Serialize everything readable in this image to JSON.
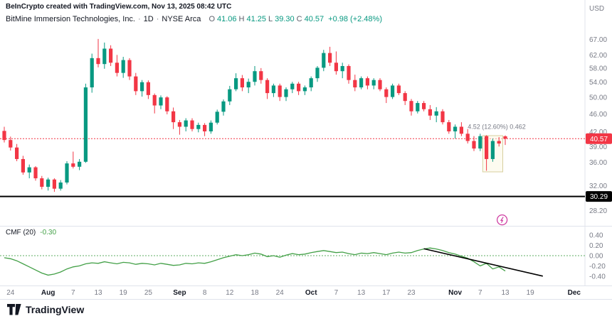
{
  "header": {
    "attribution": "BeInCrypto created with TradingView.com, Nov 13, 2025 08:42 UTC",
    "symbol": {
      "name": "BitMine Immersion Technologies, Inc.",
      "dot": "·",
      "interval": "1D",
      "exchange": "NYSE Arca",
      "ohlc": {
        "o_label": "O",
        "o": "41.06",
        "h_label": "H",
        "h": "41.25",
        "l_label": "L",
        "l": "39.30",
        "c_label": "C",
        "c": "40.57",
        "change": "+0.98 (+2.48%)"
      }
    }
  },
  "indicator": {
    "label": "CMF (20)",
    "value": "-0.30"
  },
  "axes": {
    "currency_label": "USD",
    "price_ticks": [
      "67.00",
      "62.00",
      "58.00",
      "54.00",
      "50.00",
      "46.00",
      "42.00",
      "39.00",
      "36.00",
      "32.00",
      "28.20"
    ],
    "cmf_ticks": [
      "0.40",
      "0.20",
      "0.00",
      "-0.20",
      "-0.40"
    ],
    "time_ticks": [
      {
        "label": "24",
        "index": 1,
        "month": false
      },
      {
        "label": "Aug",
        "index": 7,
        "month": true
      },
      {
        "label": "7",
        "index": 11,
        "month": false
      },
      {
        "label": "13",
        "index": 15,
        "month": false
      },
      {
        "label": "19",
        "index": 19,
        "month": false
      },
      {
        "label": "25",
        "index": 23,
        "month": false
      },
      {
        "label": "Sep",
        "index": 28,
        "month": true
      },
      {
        "label": "8",
        "index": 32,
        "month": false
      },
      {
        "label": "12",
        "index": 36,
        "month": false
      },
      {
        "label": "18",
        "index": 40,
        "month": false
      },
      {
        "label": "24",
        "index": 44,
        "month": false
      },
      {
        "label": "Oct",
        "index": 49,
        "month": true
      },
      {
        "label": "7",
        "index": 53,
        "month": false
      },
      {
        "label": "13",
        "index": 57,
        "month": false
      },
      {
        "label": "17",
        "index": 61,
        "month": false
      },
      {
        "label": "23",
        "index": 65,
        "month": false
      },
      {
        "label": "Nov",
        "index": 72,
        "month": true
      },
      {
        "label": "7",
        "index": 76,
        "month": false
      },
      {
        "label": "13",
        "index": 80,
        "month": false
      },
      {
        "label": "19",
        "index": 84,
        "month": false
      },
      {
        "label": "Dec",
        "index": 91,
        "month": true
      }
    ]
  },
  "annotations": {
    "support_line": {
      "price": 30.29,
      "label": "30.29"
    },
    "last_price_line": {
      "price": 40.57,
      "label": "40.57",
      "style": "dashed"
    },
    "measure_label": {
      "text": "4.52 (12.60%) 0.462",
      "index": 74,
      "price": 42.6
    },
    "highlight_box": {
      "from_index": 76.4,
      "to_index": 79.6,
      "top_price": 41.2,
      "bottom_price": 34.3
    },
    "event_marker": {
      "index": 79.5,
      "price": 26.9,
      "icon": "lightning"
    },
    "cmf_trendline": {
      "from_index": 67,
      "from_value": 0.135,
      "to_index": 86,
      "to_value": -0.4
    },
    "cmf_zero_line": {
      "value": 0
    }
  },
  "colors": {
    "up": "#089981",
    "down": "#f23645",
    "cmf_line": "#43a047",
    "cmf_zero": "#5fae63",
    "trend": "#000000",
    "support": "#000000",
    "axis_text": "#787b86",
    "dark_text": "#131722",
    "separator": "#e0e3eb",
    "event": "#cf3ea2",
    "measure_text": "#787b86",
    "highlight_fill": "#fbf7e3",
    "highlight_stroke": "#d8cf9e",
    "badge_text": "#ffffff"
  },
  "footer": {
    "logo_text": "TradingView"
  },
  "chart_data": [
    {
      "type": "candlestick",
      "title": "BitMine Immersion Technologies, Inc., 1D, NYSE Arca",
      "ylabel": "USD",
      "y_scale": "log",
      "ylim": [
        26.1,
        70.9
      ],
      "legend_position": "top-left",
      "grid": false,
      "dates": [
        "2025-07-23",
        "2025-07-24",
        "2025-07-25",
        "2025-07-28",
        "2025-07-29",
        "2025-07-30",
        "2025-07-31",
        "2025-08-01",
        "2025-08-04",
        "2025-08-05",
        "2025-08-06",
        "2025-08-07",
        "2025-08-08",
        "2025-08-11",
        "2025-08-12",
        "2025-08-13",
        "2025-08-14",
        "2025-08-15",
        "2025-08-18",
        "2025-08-19",
        "2025-08-20",
        "2025-08-21",
        "2025-08-22",
        "2025-08-25",
        "2025-08-26",
        "2025-08-27",
        "2025-08-28",
        "2025-08-29",
        "2025-09-02",
        "2025-09-03",
        "2025-09-04",
        "2025-09-05",
        "2025-09-08",
        "2025-09-09",
        "2025-09-10",
        "2025-09-11",
        "2025-09-12",
        "2025-09-15",
        "2025-09-16",
        "2025-09-17",
        "2025-09-18",
        "2025-09-19",
        "2025-09-22",
        "2025-09-23",
        "2025-09-24",
        "2025-09-25",
        "2025-09-26",
        "2025-09-29",
        "2025-09-30",
        "2025-10-01",
        "2025-10-02",
        "2025-10-03",
        "2025-10-06",
        "2025-10-07",
        "2025-10-08",
        "2025-10-09",
        "2025-10-10",
        "2025-10-13",
        "2025-10-14",
        "2025-10-15",
        "2025-10-16",
        "2025-10-17",
        "2025-10-20",
        "2025-10-21",
        "2025-10-22",
        "2025-10-23",
        "2025-10-24",
        "2025-10-27",
        "2025-10-28",
        "2025-10-29",
        "2025-10-30",
        "2025-10-31",
        "2025-11-03",
        "2025-11-04",
        "2025-11-05",
        "2025-11-06",
        "2025-11-07",
        "2025-11-10",
        "2025-11-11",
        "2025-11-12",
        "2025-11-13"
      ],
      "ohlc": [
        [
          42.2,
          43.1,
          39.8,
          40.3
        ],
        [
          40.3,
          41.0,
          38.2,
          38.8
        ],
        [
          38.8,
          39.5,
          36.2,
          36.6
        ],
        [
          36.6,
          37.2,
          33.8,
          34.2
        ],
        [
          34.2,
          35.6,
          33.2,
          35.1
        ],
        [
          35.1,
          35.3,
          32.8,
          33.2
        ],
        [
          33.2,
          33.6,
          31.4,
          31.8
        ],
        [
          31.8,
          33.3,
          31.2,
          33.0
        ],
        [
          33.0,
          33.2,
          31.0,
          31.5
        ],
        [
          31.5,
          32.9,
          31.2,
          32.5
        ],
        [
          32.5,
          36.2,
          32.2,
          35.8
        ],
        [
          35.8,
          38.0,
          34.9,
          35.2
        ],
        [
          35.2,
          36.6,
          34.6,
          36.1
        ],
        [
          36.1,
          53.6,
          35.9,
          52.6
        ],
        [
          52.6,
          62.4,
          51.2,
          61.0
        ],
        [
          61.0,
          67.2,
          58.2,
          59.2
        ],
        [
          59.2,
          66.0,
          57.8,
          64.0
        ],
        [
          64.0,
          65.1,
          58.6,
          59.6
        ],
        [
          59.6,
          62.0,
          55.6,
          56.6
        ],
        [
          56.6,
          61.4,
          55.2,
          60.4
        ],
        [
          60.4,
          61.0,
          54.6,
          55.6
        ],
        [
          55.6,
          56.6,
          50.6,
          51.6
        ],
        [
          51.6,
          54.6,
          50.2,
          54.0
        ],
        [
          54.0,
          54.5,
          49.6,
          50.6
        ],
        [
          50.6,
          51.0,
          46.1,
          48.0
        ],
        [
          48.0,
          50.5,
          47.1,
          50.0
        ],
        [
          50.0,
          50.3,
          45.9,
          46.6
        ],
        [
          46.6,
          47.5,
          42.6,
          44.1
        ],
        [
          44.1,
          44.6,
          41.4,
          43.1
        ],
        [
          43.1,
          45.0,
          42.1,
          44.5
        ],
        [
          44.5,
          45.0,
          42.1,
          42.6
        ],
        [
          42.6,
          44.0,
          41.9,
          43.5
        ],
        [
          43.5,
          43.9,
          41.1,
          42.1
        ],
        [
          42.1,
          44.5,
          41.6,
          44.0
        ],
        [
          44.0,
          47.0,
          43.6,
          46.5
        ],
        [
          46.5,
          49.5,
          45.6,
          49.0
        ],
        [
          49.0,
          53.0,
          48.1,
          52.1
        ],
        [
          52.1,
          56.5,
          51.6,
          55.1
        ],
        [
          55.1,
          56.0,
          51.6,
          52.6
        ],
        [
          52.6,
          55.0,
          51.1,
          54.1
        ],
        [
          54.1,
          58.6,
          53.1,
          57.1
        ],
        [
          57.1,
          58.0,
          53.6,
          54.6
        ],
        [
          54.6,
          55.1,
          49.6,
          51.1
        ],
        [
          51.1,
          53.6,
          50.1,
          53.1
        ],
        [
          53.1,
          53.6,
          49.1,
          50.1
        ],
        [
          50.1,
          52.6,
          49.1,
          52.1
        ],
        [
          52.1,
          54.1,
          51.1,
          53.6
        ],
        [
          53.6,
          54.1,
          50.6,
          51.6
        ],
        [
          51.6,
          53.1,
          50.6,
          52.6
        ],
        [
          52.6,
          55.6,
          51.6,
          55.1
        ],
        [
          55.1,
          58.6,
          54.1,
          58.1
        ],
        [
          58.1,
          63.6,
          57.1,
          62.6
        ],
        [
          62.6,
          64.6,
          58.6,
          59.6
        ],
        [
          59.6,
          63.1,
          56.1,
          57.1
        ],
        [
          57.1,
          59.6,
          55.1,
          58.6
        ],
        [
          58.6,
          59.1,
          53.6,
          54.6
        ],
        [
          54.6,
          56.1,
          51.6,
          52.6
        ],
        [
          52.6,
          55.6,
          52.1,
          55.1
        ],
        [
          55.1,
          55.6,
          52.1,
          53.1
        ],
        [
          53.1,
          55.1,
          52.1,
          54.6
        ],
        [
          54.6,
          55.1,
          51.6,
          52.1
        ],
        [
          52.1,
          52.6,
          48.6,
          50.1
        ],
        [
          50.1,
          53.6,
          49.6,
          53.1
        ],
        [
          53.1,
          53.6,
          50.6,
          51.1
        ],
        [
          51.1,
          51.6,
          48.1,
          49.1
        ],
        [
          49.1,
          49.6,
          45.6,
          46.6
        ],
        [
          46.6,
          49.1,
          46.1,
          48.6
        ],
        [
          48.6,
          49.1,
          46.6,
          47.1
        ],
        [
          47.1,
          48.1,
          44.6,
          45.6
        ],
        [
          45.6,
          47.6,
          44.1,
          46.6
        ],
        [
          46.6,
          47.1,
          43.6,
          44.1
        ],
        [
          44.1,
          44.6,
          41.6,
          42.1
        ],
        [
          42.1,
          43.6,
          40.6,
          43.1
        ],
        [
          43.1,
          44.1,
          41.1,
          41.6
        ],
        [
          41.6,
          42.6,
          39.6,
          40.1
        ],
        [
          40.1,
          41.1,
          38.1,
          38.6
        ],
        [
          38.6,
          41.6,
          38.1,
          41.1
        ],
        [
          41.1,
          41.3,
          34.5,
          36.6
        ],
        [
          36.6,
          40.6,
          36.1,
          40.1
        ],
        [
          40.1,
          40.9,
          39.0,
          39.59
        ],
        [
          41.06,
          41.25,
          39.3,
          40.57
        ]
      ]
    },
    {
      "type": "line",
      "title": "CMF (20)",
      "ylim": [
        -0.58,
        0.53
      ],
      "zero_line": 0,
      "color": "#43a047",
      "values": [
        -0.04,
        -0.06,
        -0.1,
        -0.16,
        -0.22,
        -0.28,
        -0.34,
        -0.38,
        -0.36,
        -0.32,
        -0.26,
        -0.22,
        -0.2,
        -0.16,
        -0.14,
        -0.15,
        -0.12,
        -0.14,
        -0.16,
        -0.13,
        -0.14,
        -0.17,
        -0.15,
        -0.16,
        -0.18,
        -0.15,
        -0.17,
        -0.19,
        -0.18,
        -0.15,
        -0.16,
        -0.14,
        -0.15,
        -0.12,
        -0.08,
        -0.04,
        -0.01,
        0.02,
        0.0,
        0.02,
        0.05,
        0.03,
        -0.02,
        0.0,
        -0.03,
        0.01,
        0.04,
        0.02,
        0.03,
        0.06,
        0.08,
        0.1,
        0.08,
        0.06,
        0.07,
        0.04,
        0.02,
        0.05,
        0.04,
        0.06,
        0.04,
        0.02,
        0.05,
        0.07,
        0.05,
        0.06,
        0.1,
        0.13,
        0.15,
        0.13,
        0.1,
        0.06,
        0.03,
        -0.01,
        -0.05,
        -0.12,
        -0.2,
        -0.15,
        -0.26,
        -0.22,
        -0.3
      ]
    }
  ]
}
